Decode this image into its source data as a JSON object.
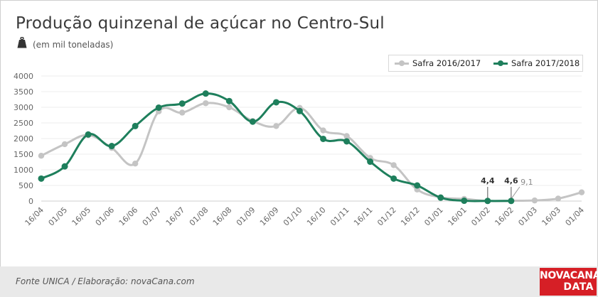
{
  "chart_data": {
    "type": "line",
    "title": "Produção quinzenal de açúcar no Centro-Sul",
    "subtitle": "(em mil toneladas)",
    "categories": [
      "16/04",
      "01/05",
      "16/05",
      "01/06",
      "16/06",
      "01/07",
      "16/07",
      "01/08",
      "16/08",
      "01/09",
      "16/09",
      "01/10",
      "16/10",
      "01/11",
      "16/11",
      "01/12",
      "16/12",
      "01/01",
      "16/01",
      "01/02",
      "16/02",
      "01/03",
      "16/03",
      "01/04"
    ],
    "y_ticks": [
      "0",
      "500",
      "1000",
      "1500",
      "2000",
      "2500",
      "3000",
      "3500",
      "4000"
    ],
    "ylim": [
      0,
      4000
    ],
    "grid": true,
    "legend_position": "top-right",
    "series": [
      {
        "name": "Safra 2016/2017",
        "color": "#c4c4c4",
        "values": [
          1450,
          1820,
          2110,
          1700,
          1200,
          2870,
          2830,
          3130,
          3000,
          2560,
          2400,
          2980,
          2260,
          2080,
          1380,
          1150,
          370,
          120,
          70,
          4.4,
          9.1,
          20,
          80,
          280
        ]
      },
      {
        "name": "Safra 2017/2018",
        "color": "#1e7f5c",
        "values": [
          720,
          1110,
          2130,
          1760,
          2400,
          2990,
          3120,
          3440,
          3200,
          2540,
          3160,
          2880,
          1990,
          1910,
          1260,
          720,
          500,
          110,
          10,
          4.4,
          4.6,
          null,
          null,
          null
        ]
      }
    ],
    "annotations": [
      {
        "text": "4,4",
        "category": "01/02",
        "value": 4.4,
        "style": "bold"
      },
      {
        "text": "4,6",
        "category": "16/02",
        "value": 4.6,
        "style": "bold"
      },
      {
        "text": "9,1",
        "category": "16/02",
        "value": 9.1,
        "style": "gray"
      }
    ]
  },
  "footer": {
    "source": "Fonte UNICA / Elaboração: novaCana.com",
    "logo_top": "NOVACANA",
    "logo_bottom": "DATA"
  }
}
